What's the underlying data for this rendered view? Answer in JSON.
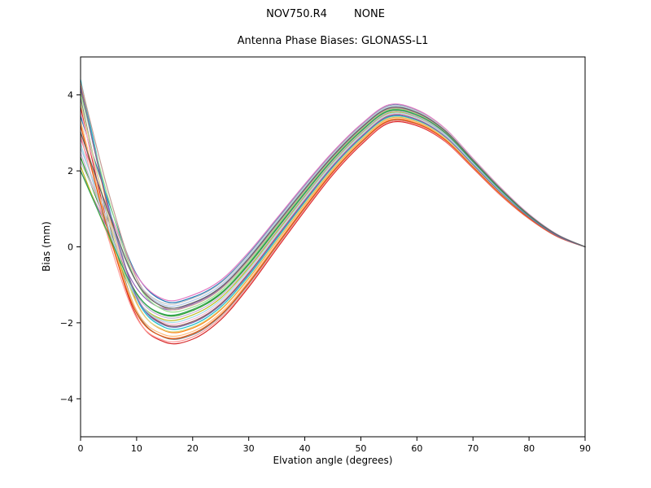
{
  "window": {
    "background": "#ffffff"
  },
  "chart": {
    "suptitle": "NOV750.R4        NONE",
    "title": "Antenna Phase Biases: GLONASS-L1",
    "xlabel": "Elvation angle (degrees)",
    "ylabel": "Bias (mm)"
  },
  "chart_data": {
    "type": "line",
    "suptitle": "NOV750.R4        NONE",
    "title": "Antenna Phase Biases: GLONASS-L1",
    "xlabel": "Elvation angle (degrees)",
    "ylabel": "Bias (mm)",
    "xlim": [
      0,
      90
    ],
    "ylim": [
      -5,
      5
    ],
    "xticks": [
      0,
      10,
      20,
      30,
      40,
      50,
      60,
      70,
      80,
      90
    ],
    "yticks": [
      -4,
      -2,
      0,
      2,
      4
    ],
    "grid": false,
    "legend": "none",
    "axes_color": "#000000",
    "x": [
      0,
      5,
      10,
      15,
      20,
      25,
      30,
      35,
      40,
      45,
      50,
      55,
      60,
      65,
      70,
      75,
      80,
      85,
      90
    ],
    "base": [
      3.2,
      0.7,
      -1.3,
      -1.95,
      -1.85,
      -1.4,
      -0.6,
      0.35,
      1.3,
      2.2,
      2.95,
      3.5,
      3.4,
      2.95,
      2.2,
      1.45,
      0.8,
      0.3,
      0.0
    ],
    "half_spread": [
      1.2,
      0.95,
      0.75,
      0.6,
      0.58,
      0.52,
      0.46,
      0.4,
      0.35,
      0.3,
      0.27,
      0.24,
      0.21,
      0.17,
      0.13,
      0.1,
      0.06,
      0.03,
      0.0
    ],
    "start_weight": [
      1.0,
      0.55,
      0.2,
      0.05,
      0,
      0,
      0,
      0,
      0,
      0,
      0,
      0,
      0,
      0,
      0,
      0,
      0,
      0,
      0
    ],
    "series": [
      {
        "id": "s01",
        "color": "#1f77b4",
        "c_start": 0.2,
        "c_main": 0.9
      },
      {
        "id": "s02",
        "color": "#ff7f0e",
        "c_start": 0.9,
        "c_main": -0.5
      },
      {
        "id": "s03",
        "color": "#2ca02c",
        "c_start": -0.7,
        "c_main": 0.3
      },
      {
        "id": "s04",
        "color": "#d62728",
        "c_start": 0.4,
        "c_main": -1.0
      },
      {
        "id": "s05",
        "color": "#9467bd",
        "c_start": -1.0,
        "c_main": 0.6
      },
      {
        "id": "s06",
        "color": "#8c564b",
        "c_start": 0.8,
        "c_main": -0.2
      },
      {
        "id": "s07",
        "color": "#e377c2",
        "c_start": -0.3,
        "c_main": 1.0
      },
      {
        "id": "s08",
        "color": "#7f7f7f",
        "c_start": 0.6,
        "c_main": -0.8
      },
      {
        "id": "s09",
        "color": "#bcbd22",
        "c_start": -0.9,
        "c_main": 0.1
      },
      {
        "id": "s10",
        "color": "#17becf",
        "c_start": 1.0,
        "c_main": -0.35
      },
      {
        "id": "s11",
        "color": "#aec7e8",
        "c_start": -0.5,
        "c_main": 0.75
      },
      {
        "id": "s12",
        "color": "#ffbb78",
        "c_start": 0.1,
        "c_main": -0.65
      },
      {
        "id": "s13",
        "color": "#98df8a",
        "c_start": 0.7,
        "c_main": 0.45
      },
      {
        "id": "s14",
        "color": "#ff9896",
        "c_start": -0.2,
        "c_main": -0.9
      },
      {
        "id": "s15",
        "color": "#c5b0d5",
        "c_start": -0.6,
        "c_main": 0.2
      },
      {
        "id": "s16",
        "color": "#c49c94",
        "c_start": 0.95,
        "c_main": 0.55
      },
      {
        "id": "s17",
        "color": "#f7b6d2",
        "c_start": 0.3,
        "c_main": -0.1
      },
      {
        "id": "s18",
        "color": "#c7c7c7",
        "c_start": -0.8,
        "c_main": 0.85
      },
      {
        "id": "s19",
        "color": "#dbdb8d",
        "c_start": 0.5,
        "c_main": -0.45
      },
      {
        "id": "s20",
        "color": "#9edae5",
        "c_start": -0.4,
        "c_main": 0.0
      },
      {
        "id": "s21",
        "color": "#e6550d",
        "c_start": 0.0,
        "c_main": -0.75
      },
      {
        "id": "s22",
        "color": "#31a354",
        "c_start": -1.0,
        "c_main": 0.35
      },
      {
        "id": "s23",
        "color": "#756bb1",
        "c_start": 0.85,
        "c_main": -0.25
      },
      {
        "id": "s24",
        "color": "#636363",
        "c_start": -0.15,
        "c_main": 0.65
      }
    ]
  }
}
